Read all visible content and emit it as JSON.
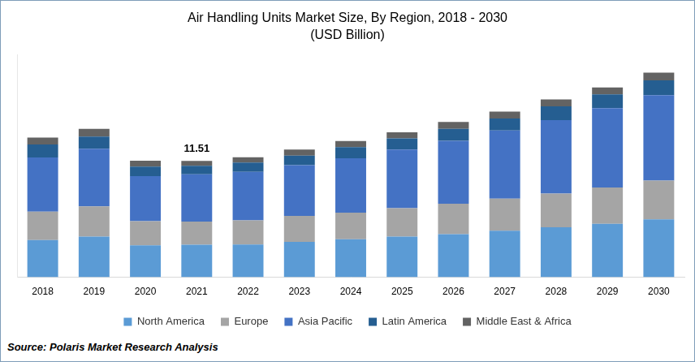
{
  "chart_data": {
    "type": "bar",
    "title": "Air Handling Units Market Size, By Region, 2018 - 2030",
    "subtitle": "(USD Billion)",
    "source": "Source: Polaris Market Research Analysis",
    "categories": [
      "2018",
      "2019",
      "2020",
      "2021",
      "2022",
      "2023",
      "2024",
      "2025",
      "2026",
      "2027",
      "2028",
      "2029",
      "2030"
    ],
    "series": [
      {
        "name": "North America",
        "color": "#5b9bd5",
        "values": [
          3.67,
          4.01,
          3.16,
          3.22,
          3.24,
          3.5,
          3.75,
          4.01,
          4.27,
          4.61,
          4.95,
          5.29,
          5.72
        ]
      },
      {
        "name": "Europe",
        "color": "#a5a5a5",
        "values": [
          2.81,
          2.99,
          2.39,
          2.29,
          2.39,
          2.56,
          2.64,
          2.81,
          2.99,
          3.16,
          3.33,
          3.58,
          3.84
        ]
      },
      {
        "name": "Asia Pacific",
        "color": "#4472c4",
        "values": [
          5.37,
          5.71,
          4.44,
          4.66,
          4.78,
          5.03,
          5.37,
          5.8,
          6.23,
          6.74,
          7.25,
          7.85,
          8.45
        ]
      },
      {
        "name": "Latin America",
        "color": "#255e91",
        "values": [
          1.28,
          1.19,
          0.94,
          0.85,
          0.94,
          0.94,
          1.11,
          1.11,
          1.19,
          1.19,
          1.37,
          1.37,
          1.45
        ]
      },
      {
        "name": "Middle East & Africa",
        "color": "#636363",
        "values": [
          0.68,
          0.77,
          0.6,
          0.49,
          0.51,
          0.6,
          0.6,
          0.6,
          0.68,
          0.68,
          0.68,
          0.68,
          0.77
        ]
      }
    ],
    "annotations": [
      {
        "category": "2021",
        "value": 11.51
      }
    ],
    "ylim": [
      0,
      22
    ],
    "stacked": true,
    "grid": false,
    "legend": "bottom",
    "tick_labels": "x"
  }
}
